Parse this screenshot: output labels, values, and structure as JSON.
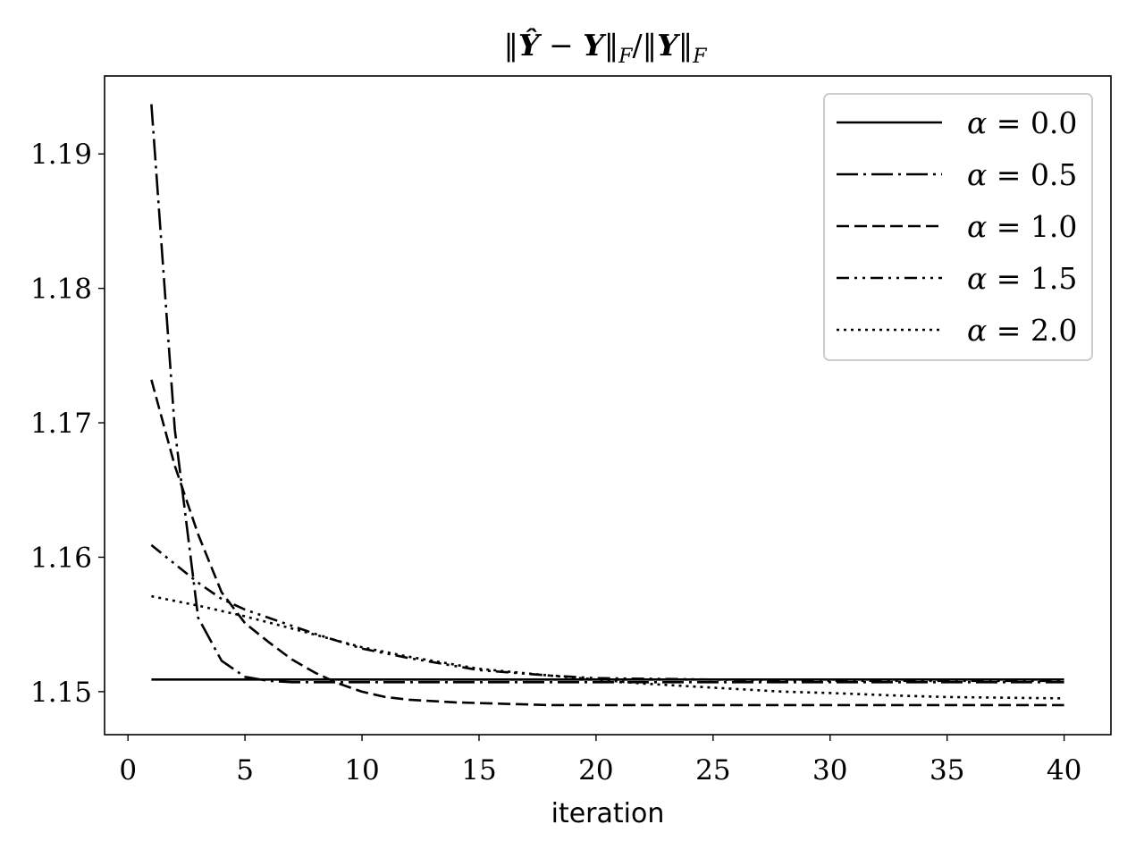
{
  "chart_data": {
    "type": "line",
    "title": {
      "parts": [
        {
          "t": "‖",
          "s": "n"
        },
        {
          "t": "Ŷ",
          "s": "b"
        },
        {
          "t": " − ",
          "s": "n"
        },
        {
          "t": "Y",
          "s": "b"
        },
        {
          "t": "‖",
          "s": "n"
        },
        {
          "t": "F",
          "s": "sub"
        },
        {
          "t": "/‖",
          "s": "n"
        },
        {
          "t": "Y",
          "s": "b"
        },
        {
          "t": "‖",
          "s": "n"
        },
        {
          "t": "F",
          "s": "sub"
        }
      ]
    },
    "xlabel": "iteration",
    "ylabel": "",
    "xlim": [
      -1,
      42
    ],
    "ylim": [
      1.1468,
      1.1958
    ],
    "xticks": [
      0,
      5,
      10,
      15,
      20,
      25,
      30,
      35,
      40
    ],
    "yticks": [
      1.15,
      1.16,
      1.17,
      1.18,
      1.19
    ],
    "ytick_labels": [
      "1.15",
      "1.16",
      "1.17",
      "1.18",
      "1.19"
    ],
    "grid": false,
    "legend_position": "top-right",
    "series": [
      {
        "name": "α = 0.0",
        "greek": "α",
        "op": " = ",
        "num": "0.0",
        "style": "solid",
        "x": [
          1,
          40
        ],
        "y": [
          1.1509,
          1.1509
        ]
      },
      {
        "name": "α = 0.5",
        "greek": "α",
        "op": " = ",
        "num": "0.5",
        "style": "dashdot",
        "x": [
          1,
          2,
          3,
          4,
          5,
          6,
          7,
          8,
          10,
          15,
          20,
          25,
          30,
          35,
          40
        ],
        "y": [
          1.1937,
          1.1695,
          1.1555,
          1.1523,
          1.1511,
          1.1508,
          1.1507,
          1.1507,
          1.1507,
          1.1507,
          1.1507,
          1.1507,
          1.1507,
          1.1507,
          1.1507
        ]
      },
      {
        "name": "α = 1.0",
        "greek": "α",
        "op": " = ",
        "num": "1.0",
        "style": "dashed",
        "x": [
          1,
          2,
          3,
          4,
          5,
          6,
          7,
          8,
          9,
          10,
          11,
          12,
          14,
          16,
          18,
          20,
          25,
          30,
          35,
          40
        ],
        "y": [
          1.1732,
          1.1668,
          1.1617,
          1.1574,
          1.1551,
          1.1537,
          1.1524,
          1.1514,
          1.1506,
          1.15,
          1.1496,
          1.1494,
          1.1492,
          1.1491,
          1.149,
          1.149,
          1.149,
          1.149,
          1.149,
          1.149
        ]
      },
      {
        "name": "α = 1.5",
        "greek": "α",
        "op": " = ",
        "num": "1.5",
        "style": "dashdotdot",
        "x": [
          1,
          2,
          3,
          4,
          5,
          6,
          7,
          8,
          10,
          12,
          15,
          18,
          20,
          25,
          30,
          35,
          40
        ],
        "y": [
          1.1609,
          1.1595,
          1.1581,
          1.1569,
          1.1561,
          1.1555,
          1.1549,
          1.1543,
          1.1532,
          1.1525,
          1.1516,
          1.1512,
          1.151,
          1.1509,
          1.1508,
          1.1508,
          1.1508
        ]
      },
      {
        "name": "α = 2.0",
        "greek": "α",
        "op": " = ",
        "num": "2.0",
        "style": "dotted",
        "x": [
          1,
          3,
          5,
          7,
          10,
          12,
          15,
          18,
          20,
          22,
          25,
          28,
          30,
          33,
          35,
          40
        ],
        "y": [
          1.1571,
          1.1564,
          1.1556,
          1.1547,
          1.1533,
          1.1526,
          1.1517,
          1.1512,
          1.1509,
          1.1506,
          1.1503,
          1.15,
          1.1499,
          1.1497,
          1.1496,
          1.1495
        ]
      }
    ]
  }
}
